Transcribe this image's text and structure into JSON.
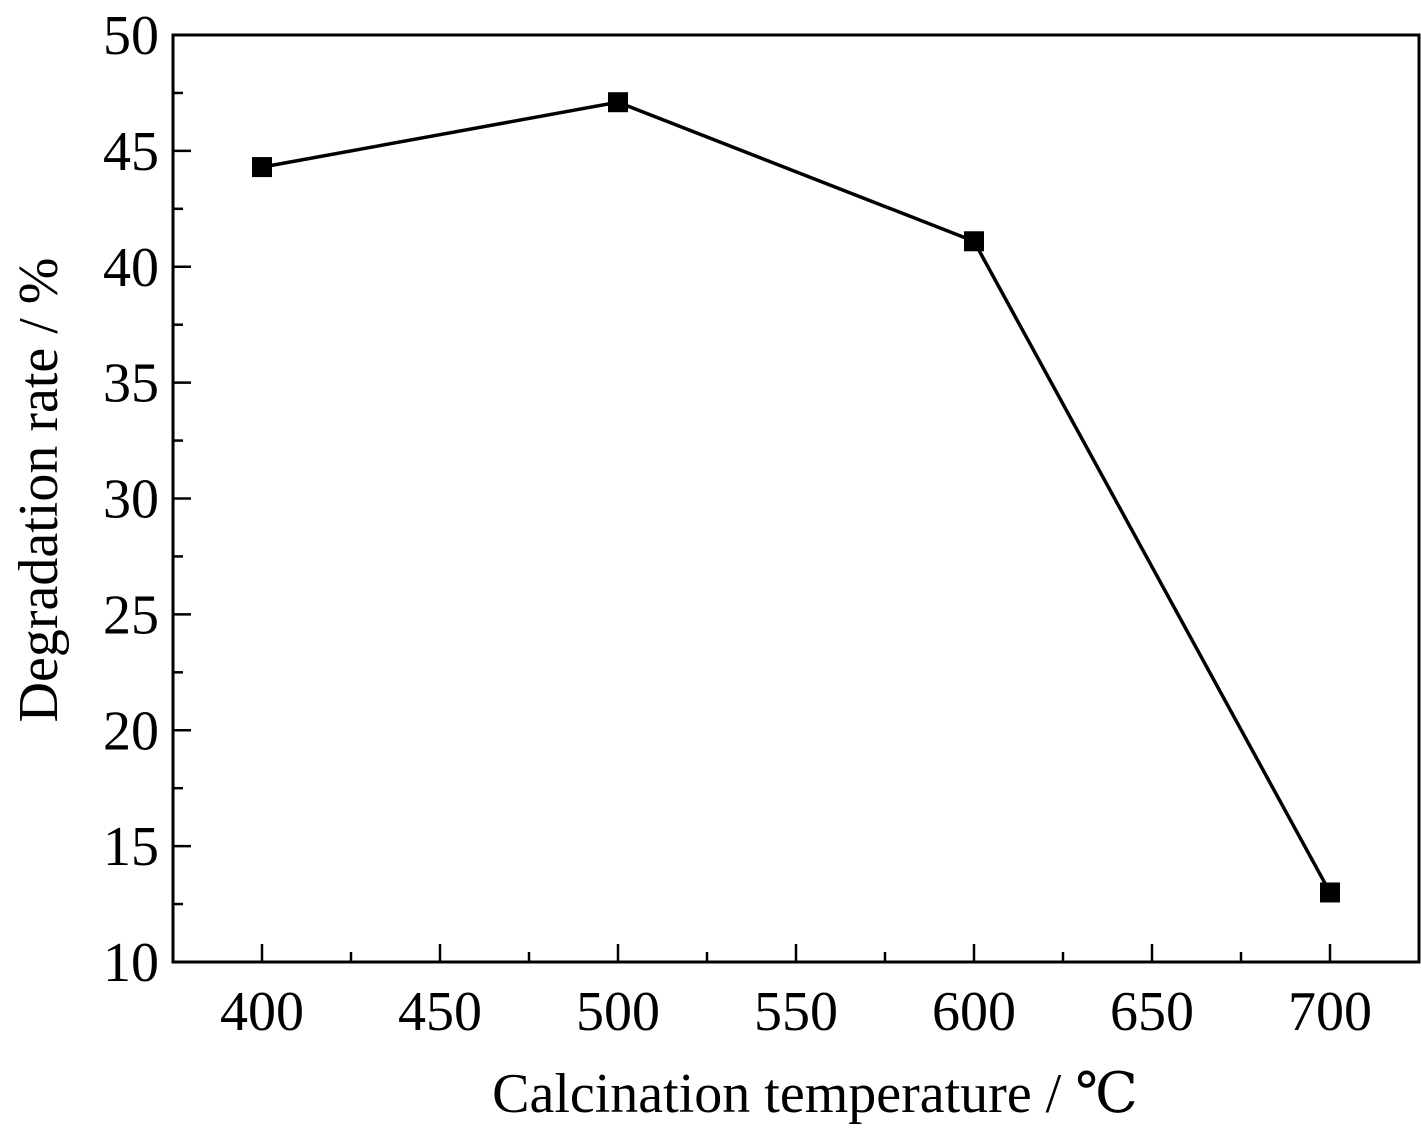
{
  "chart_data": {
    "type": "line",
    "title": "",
    "xlabel": "Calcination temperature / ℃",
    "ylabel": "Degradation rate / %",
    "xlim": [
      375,
      725
    ],
    "ylim": [
      10,
      50
    ],
    "x_major_ticks": [
      400,
      450,
      500,
      550,
      600,
      650,
      700
    ],
    "x_minor_ticks": [
      425,
      475,
      525,
      575,
      625,
      675
    ],
    "y_major_ticks": [
      10,
      15,
      20,
      25,
      30,
      35,
      40,
      45,
      50
    ],
    "y_minor_ticks": [
      12.5,
      17.5,
      22.5,
      27.5,
      32.5,
      37.5,
      42.5,
      47.5
    ],
    "grid": false,
    "legend": "none",
    "series": [
      {
        "marker": "square",
        "color": "#000000",
        "x": [
          400,
          500,
          600,
          700
        ],
        "y": [
          44.3,
          47.1,
          41.1,
          13.0
        ]
      }
    ]
  }
}
